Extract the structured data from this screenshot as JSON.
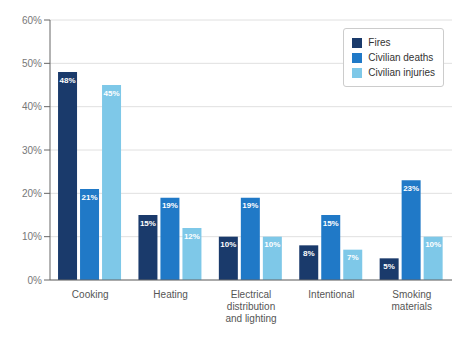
{
  "chart_data": {
    "type": "bar",
    "categories": [
      "Cooking",
      "Heating",
      "Electrical\ndistribution\nand lighting",
      "Intentional",
      "Smoking\nmaterials"
    ],
    "series": [
      {
        "name": "Fires",
        "color": "#1a3a6b",
        "values": [
          48,
          15,
          10,
          8,
          5
        ],
        "value_labels": [
          "48%",
          "15%",
          "10%",
          "8%",
          "5%"
        ]
      },
      {
        "name": "Civilian deaths",
        "color": "#2079c7",
        "values": [
          21,
          19,
          19,
          15,
          23
        ],
        "value_labels": [
          "21%",
          "19%",
          "19%",
          "15%",
          "23%"
        ]
      },
      {
        "name": "Civilian injuries",
        "color": "#7ec8e8",
        "values": [
          45,
          12,
          10,
          7,
          10
        ],
        "value_labels": [
          "45%",
          "12%",
          "10%",
          "7%",
          "10%"
        ]
      }
    ],
    "ylim": [
      0,
      60
    ],
    "yticks": [
      {
        "value": 0,
        "label": "0%"
      },
      {
        "value": 10,
        "label": "10%"
      },
      {
        "value": 20,
        "label": "20%"
      },
      {
        "value": 30,
        "label": "30%"
      },
      {
        "value": 40,
        "label": "40%"
      },
      {
        "value": 50,
        "label": "50%"
      },
      {
        "value": 60,
        "label": "60%"
      }
    ],
    "grid": true,
    "legend": "upper right",
    "data_labels": true
  }
}
